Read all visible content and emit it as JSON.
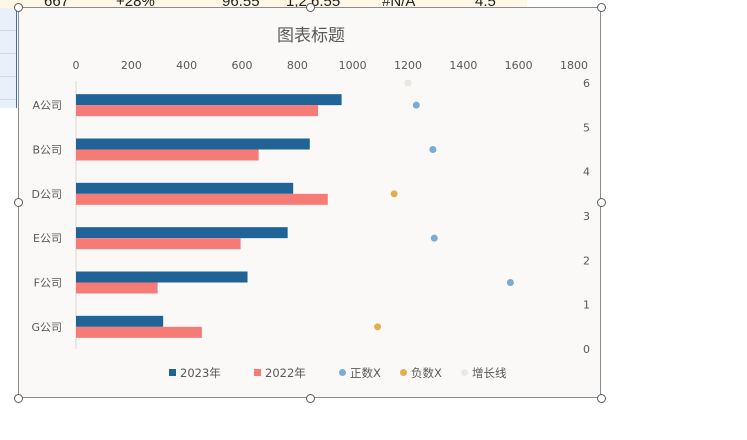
{
  "sheet": {
    "visible_row": [
      "667",
      "+28%",
      "96.55",
      "1,2  6.55",
      "#N/A",
      "4.5"
    ]
  },
  "chart_data": {
    "type": "bar",
    "orientation": "horizontal",
    "title": "图表标题",
    "categories": [
      "A公司",
      "B公司",
      "D公司",
      "E公司",
      "F公司",
      "G公司"
    ],
    "series": [
      {
        "name": "2023年",
        "color": "#1f6397",
        "values": [
          960,
          845,
          785,
          765,
          620,
          315
        ]
      },
      {
        "name": "2022年",
        "color": "#f67b77",
        "values": [
          875,
          660,
          910,
          595,
          295,
          455
        ]
      }
    ],
    "x_axis": {
      "min": 0,
      "max": 1800,
      "ticks": [
        "0",
        "200",
        "400",
        "600",
        "800",
        "1000",
        "1200",
        "1400",
        "1600",
        "1800"
      ],
      "position": "top"
    },
    "y2_axis": {
      "min": 0,
      "max": 6,
      "ticks": [
        "0",
        "1",
        "2",
        "3",
        "4",
        "5",
        "6"
      ],
      "position": "right"
    },
    "scatter_series": [
      {
        "name": "正数X",
        "color": "#7aabd4",
        "points": [
          [
            1230,
            5.5
          ],
          [
            1290,
            4.5
          ],
          [
            1295,
            2.5
          ],
          [
            1570,
            1.5
          ]
        ]
      },
      {
        "name": "负数X",
        "color": "#e4ad4f",
        "points": [
          [
            1150,
            3.5
          ],
          [
            1090,
            0.5
          ]
        ]
      },
      {
        "name": "增长线",
        "color": "#ece8e1",
        "points": [
          [
            1200,
            6
          ]
        ]
      }
    ],
    "legend": [
      "2023年",
      "2022年",
      "正数X",
      "负数X",
      "增长线"
    ],
    "legend_position": "bottom"
  }
}
